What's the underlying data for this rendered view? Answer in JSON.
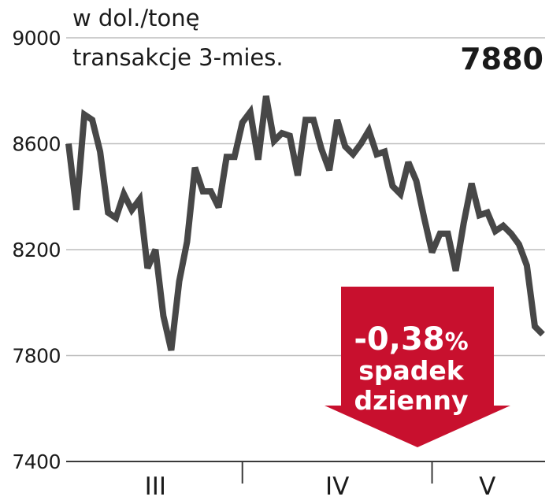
{
  "chart_data": {
    "type": "line",
    "unit_label": "w dol./tonę",
    "series_label": "transakcje 3-mies.",
    "last_value_label": "7880",
    "ylim": [
      7400,
      9000
    ],
    "y_ticks": [
      9000,
      8600,
      8200,
      7800,
      7400
    ],
    "y_tick_labels": [
      "9000",
      "8600",
      "8200",
      "7800",
      "7400"
    ],
    "months": [
      "III",
      "IV",
      "V"
    ],
    "grid": true,
    "series": [
      {
        "values": [
          8600,
          8350,
          8710,
          8690,
          8570,
          8340,
          8320,
          8410,
          8350,
          8390,
          8130,
          8200,
          7950,
          7820,
          8080,
          8230,
          8510,
          8420,
          8420,
          8360,
          8550,
          8550,
          8680,
          8720,
          8540,
          8780,
          8610,
          8640,
          8630,
          8480,
          8690,
          8690,
          8580,
          8500,
          8690,
          8590,
          8560,
          8600,
          8650,
          8560,
          8570,
          8440,
          8410,
          8530,
          8460,
          8320,
          8190,
          8260,
          8260,
          8120,
          8300,
          8450,
          8330,
          8340,
          8270,
          8290,
          8260,
          8220,
          8140,
          7910,
          7880
        ],
        "month_boundaries": [
          22,
          46
        ]
      }
    ],
    "badge": {
      "change": "-0,38",
      "percent_sign": "%",
      "line1": "spadek",
      "line2": "dzienny",
      "color": "#c8102e"
    },
    "colors": {
      "line": "#474747",
      "grid": "#bdbdbd",
      "axis": "#3a3a3a"
    }
  }
}
